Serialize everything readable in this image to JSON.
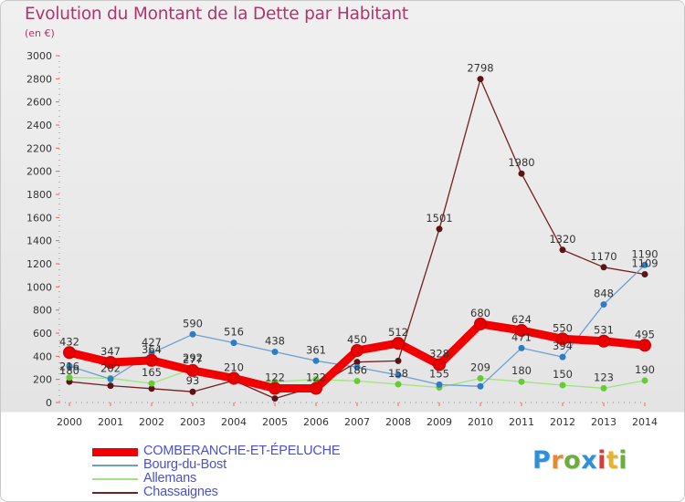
{
  "title": "Evolution du Montant de la Dette par Habitant",
  "unit": "(en €)",
  "logo": {
    "text": "Proxiti",
    "colors": [
      "#2f8fd8",
      "#e8892c",
      "#6cae3a",
      "#2f8fd8",
      "#d23d3d",
      "#e6b42c",
      "#6cae3a"
    ]
  },
  "chart_data": {
    "type": "line",
    "title": "Evolution du Montant de la Dette par Habitant",
    "subtitle": "(en €)",
    "x": [
      "2000",
      "2001",
      "2002",
      "2003",
      "2004",
      "2005",
      "2006",
      "2007",
      "2008",
      "2009",
      "2010",
      "2011",
      "2012",
      "2013",
      "2014"
    ],
    "yticks": [
      0,
      200,
      400,
      600,
      800,
      1000,
      1200,
      1400,
      1600,
      1800,
      2000,
      2200,
      2400,
      2600,
      2800,
      3000
    ],
    "ylim": [
      0,
      3000
    ],
    "grid": false,
    "legend_position": "bottom-left",
    "series": [
      {
        "name": "Chassaignes",
        "color": "#722021",
        "marker": "#5a1416",
        "width": 1.3,
        "values": [
          180,
          145,
          120,
          93,
          190,
          35,
          140,
          350,
          360,
          1501,
          2798,
          1980,
          1320,
          1170,
          1109
        ],
        "labels": [
          "180",
          "145",
          "120",
          "93",
          "190",
          "35",
          "140",
          "350",
          "360",
          "1501",
          "2798",
          "1980",
          "1320",
          "1170",
          "1109"
        ],
        "show_labels": [
          true,
          false,
          false,
          true,
          false,
          false,
          false,
          false,
          false,
          true,
          true,
          true,
          true,
          true,
          true
        ]
      },
      {
        "name": "Allemans",
        "color": "#9fe47e",
        "marker": "#66cc33",
        "width": 1.3,
        "values": [
          216,
          210,
          165,
          292,
          180,
          180,
          200,
          186,
          158,
          130,
          209,
          180,
          150,
          123,
          190
        ],
        "labels": [
          "216",
          "210",
          "165",
          "292",
          "180",
          "180",
          "200",
          "186",
          "158",
          "130",
          "209",
          "180",
          "150",
          "123",
          "190"
        ],
        "show_labels": [
          true,
          false,
          true,
          true,
          false,
          false,
          false,
          true,
          true,
          false,
          true,
          true,
          true,
          true,
          true
        ]
      },
      {
        "name": "Bourg-du-Bost",
        "color": "#6aa0cf",
        "marker": "#2f7cc4",
        "width": 1.3,
        "values": [
          316,
          202,
          427,
          590,
          516,
          438,
          361,
          305,
          237,
          155,
          140,
          471,
          394,
          848,
          1190
        ],
        "labels": [
          "316",
          "202",
          "427",
          "590",
          "516",
          "438",
          "361",
          "305",
          "237",
          "155",
          "140",
          "471",
          "394",
          "848",
          "1190"
        ],
        "show_labels": [
          false,
          true,
          true,
          true,
          true,
          true,
          true,
          false,
          false,
          true,
          false,
          true,
          true,
          true,
          true
        ]
      },
      {
        "name": "COMBERANCHE-ET-ÉPELUCHE",
        "color": "#f20000",
        "marker": "#e60000",
        "width": 9,
        "values": [
          432,
          347,
          364,
          277,
          210,
          122,
          122,
          450,
          512,
          328,
          680,
          624,
          550,
          531,
          495
        ],
        "labels": [
          "432",
          "347",
          "364",
          "277",
          "210",
          "122",
          "122",
          "450",
          "512",
          "328",
          "680",
          "624",
          "550",
          "531",
          "495"
        ],
        "show_labels": [
          true,
          true,
          true,
          true,
          true,
          true,
          true,
          true,
          true,
          true,
          true,
          true,
          true,
          true,
          true
        ]
      }
    ],
    "legend": [
      "COMBERANCHE-ET-ÉPELUCHE",
      "Bourg-du-Bost",
      "Allemans",
      "Chassaignes"
    ]
  }
}
